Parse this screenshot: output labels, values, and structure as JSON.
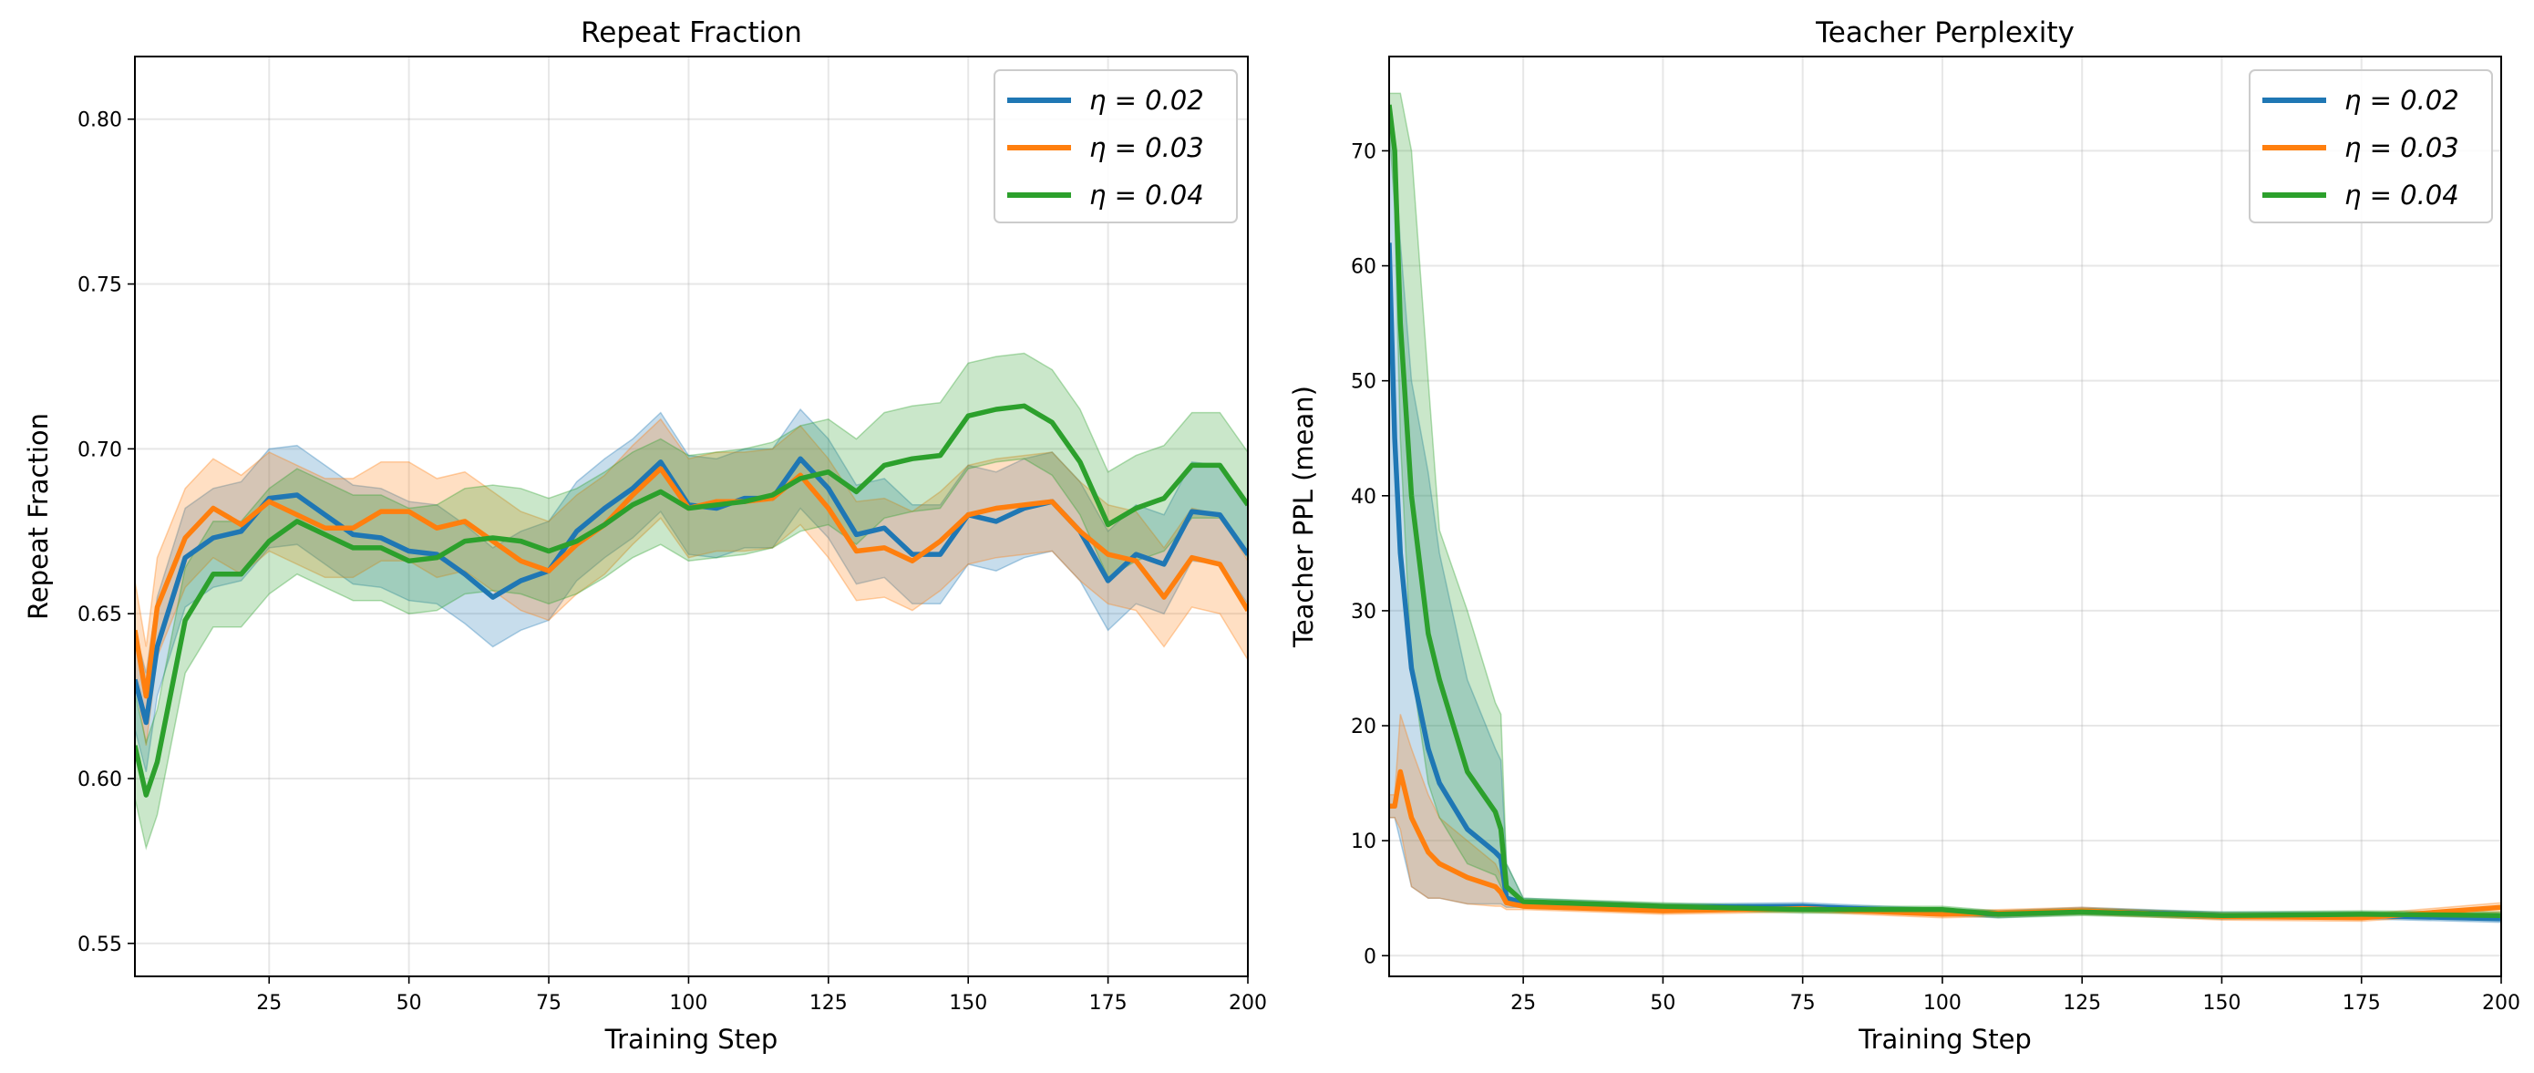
{
  "colors": {
    "eta_0.02": "#1f77b4",
    "eta_0.03": "#ff7f0e",
    "eta_0.04": "#2ca02c"
  },
  "chart_data": [
    {
      "type": "line",
      "title": "Repeat Fraction",
      "xlabel": "Training Step",
      "ylabel": "Repeat Fraction",
      "xlim": [
        1,
        200
      ],
      "ylim": [
        0.54,
        0.819
      ],
      "xticks": [
        25,
        50,
        75,
        100,
        125,
        150,
        175,
        200
      ],
      "yticks": [
        0.55,
        0.6,
        0.65,
        0.7,
        0.75,
        0.8
      ],
      "ytick_labels": [
        "0.55",
        "0.60",
        "0.65",
        "0.70",
        "0.75",
        "0.80"
      ],
      "grid": true,
      "legend": "top-right",
      "x": [
        1,
        3,
        5,
        10,
        15,
        20,
        25,
        30,
        35,
        40,
        45,
        50,
        55,
        60,
        65,
        70,
        75,
        80,
        85,
        90,
        95,
        100,
        105,
        110,
        115,
        120,
        125,
        130,
        135,
        140,
        145,
        150,
        155,
        160,
        165,
        170,
        175,
        180,
        185,
        190,
        195,
        200
      ],
      "series": [
        {
          "name": "η = 0.02",
          "color": "#1f77b4",
          "band_std": 0.015,
          "values": [
            0.63,
            0.617,
            0.64,
            0.667,
            0.673,
            0.675,
            0.685,
            0.686,
            0.68,
            0.674,
            0.673,
            0.669,
            0.668,
            0.662,
            0.655,
            0.66,
            0.663,
            0.675,
            0.682,
            0.688,
            0.696,
            0.683,
            0.682,
            0.685,
            0.685,
            0.697,
            0.688,
            0.674,
            0.676,
            0.668,
            0.668,
            0.68,
            0.678,
            0.682,
            0.684,
            0.675,
            0.66,
            0.668,
            0.665,
            0.681,
            0.68,
            0.668
          ]
        },
        {
          "name": "η = 0.03",
          "color": "#ff7f0e",
          "band_std": 0.015,
          "values": [
            0.645,
            0.625,
            0.652,
            0.673,
            0.682,
            0.677,
            0.684,
            0.68,
            0.676,
            0.676,
            0.681,
            0.681,
            0.676,
            0.678,
            0.672,
            0.666,
            0.663,
            0.671,
            0.677,
            0.686,
            0.694,
            0.682,
            0.684,
            0.684,
            0.685,
            0.692,
            0.682,
            0.669,
            0.67,
            0.666,
            0.672,
            0.68,
            0.682,
            0.683,
            0.684,
            0.675,
            0.668,
            0.666,
            0.655,
            0.667,
            0.665,
            0.651
          ]
        },
        {
          "name": "η = 0.04",
          "color": "#2ca02c",
          "band_std": 0.016,
          "values": [
            0.61,
            0.595,
            0.605,
            0.648,
            0.662,
            0.662,
            0.672,
            0.678,
            0.674,
            0.67,
            0.67,
            0.666,
            0.667,
            0.672,
            0.673,
            0.672,
            0.669,
            0.672,
            0.677,
            0.683,
            0.687,
            0.682,
            0.683,
            0.684,
            0.686,
            0.691,
            0.693,
            0.687,
            0.695,
            0.697,
            0.698,
            0.71,
            0.712,
            0.713,
            0.708,
            0.696,
            0.677,
            0.682,
            0.685,
            0.695,
            0.695,
            0.683
          ]
        }
      ]
    },
    {
      "type": "line",
      "title": "Teacher Perplexity",
      "xlabel": "Training Step",
      "ylabel": "Teacher PPL (mean)",
      "xlim": [
        1,
        200
      ],
      "ylim": [
        -1.8,
        78.2
      ],
      "xticks": [
        25,
        50,
        75,
        100,
        125,
        150,
        175,
        200
      ],
      "yticks": [
        0,
        10,
        20,
        30,
        40,
        50,
        60,
        70
      ],
      "ytick_labels": [
        "0",
        "10",
        "20",
        "30",
        "40",
        "50",
        "60",
        "70"
      ],
      "grid": true,
      "legend": "top-right",
      "x": [
        1,
        2,
        3,
        5,
        8,
        10,
        15,
        20,
        21,
        22,
        25,
        50,
        75,
        100,
        110,
        125,
        150,
        175,
        200
      ],
      "series": [
        {
          "name": "η = 0.02",
          "color": "#1f77b4",
          "values": [
            62,
            45,
            35,
            25,
            18,
            15,
            11,
            9,
            8.5,
            5,
            4.6,
            4.2,
            4.3,
            3.8,
            3.6,
            3.9,
            3.5,
            3.5,
            3.2
          ],
          "lower": [
            12,
            12,
            10,
            6,
            5,
            5,
            4.5,
            4.5,
            4.5,
            4.2,
            4.2,
            3.9,
            4.0,
            3.5,
            3.3,
            3.6,
            3.2,
            3.2,
            2.9
          ],
          "upper": [
            74,
            70,
            62,
            50,
            42,
            35,
            24,
            18,
            17,
            8,
            5,
            4.5,
            4.6,
            4.1,
            3.9,
            4.2,
            3.8,
            3.8,
            3.5
          ]
        },
        {
          "name": "η = 0.03",
          "color": "#ff7f0e",
          "values": [
            13,
            13,
            16,
            12,
            9,
            8,
            6.8,
            6,
            5.5,
            4.6,
            4.3,
            3.9,
            4.1,
            3.6,
            3.7,
            3.9,
            3.4,
            3.3,
            4.2
          ],
          "lower": [
            12,
            12,
            11,
            6,
            5,
            5,
            4.5,
            4.3,
            4.3,
            4.0,
            4.0,
            3.6,
            3.8,
            3.3,
            3.4,
            3.6,
            3.1,
            3.0,
            3.8
          ],
          "upper": [
            14,
            14,
            21,
            18,
            14,
            12,
            10,
            8,
            7,
            5.2,
            4.6,
            4.2,
            4.4,
            3.9,
            4.0,
            4.2,
            3.7,
            3.6,
            4.6
          ]
        },
        {
          "name": "η = 0.04",
          "color": "#2ca02c",
          "values": [
            74,
            70,
            55,
            40,
            28,
            24,
            16,
            12.5,
            11,
            6,
            4.7,
            4.3,
            4.0,
            4.0,
            3.6,
            3.8,
            3.5,
            3.6,
            3.5
          ],
          "lower": [
            72,
            65,
            45,
            25,
            15,
            12,
            8,
            7,
            6,
            5,
            4.4,
            4.0,
            3.7,
            3.7,
            3.3,
            3.5,
            3.2,
            3.3,
            3.2
          ],
          "upper": [
            75,
            75,
            75,
            70,
            50,
            37,
            30,
            22,
            21,
            8,
            5,
            4.6,
            4.3,
            4.3,
            3.9,
            4.1,
            3.8,
            3.9,
            3.8
          ]
        }
      ]
    }
  ]
}
